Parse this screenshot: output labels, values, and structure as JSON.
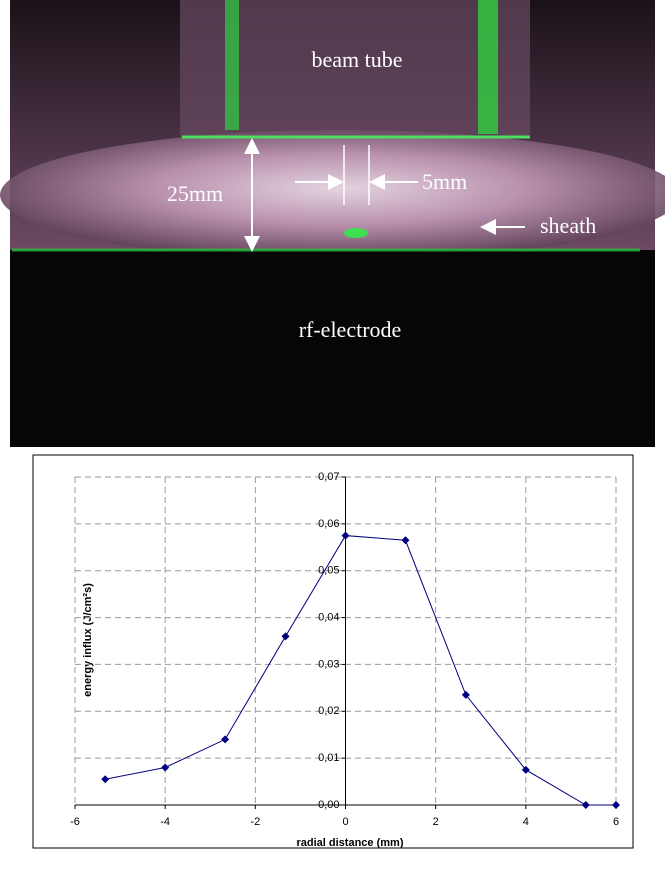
{
  "photo": {
    "beam_tube": "beam tube",
    "gap": "25mm",
    "spot": "5mm",
    "sheath": "sheath",
    "electrode": "rf-electrode"
  },
  "chart_data": {
    "type": "line",
    "x_label": "radial distance (mm)",
    "y_label": "energy influx (J/cm²s)",
    "x": [
      -5.33,
      -4,
      -2.67,
      -1.33,
      0,
      1.33,
      2.67,
      4,
      5.33,
      6
    ],
    "values": [
      0.0055,
      0.008,
      0.014,
      0.036,
      0.0575,
      0.0565,
      0.0235,
      0.0075,
      0.0,
      0.0
    ],
    "color": "#000080",
    "marker": "diamond",
    "xlim": [
      -6,
      6
    ],
    "ylim": [
      0,
      0.07
    ],
    "xticks": [
      -6,
      -4,
      -2,
      0,
      2,
      4,
      6
    ],
    "yticks": [
      {
        "value": 0,
        "label": "0,00"
      },
      {
        "value": 0.01,
        "label": "0,01"
      },
      {
        "value": 0.02,
        "label": "0,02"
      },
      {
        "value": 0.03,
        "label": "0,03"
      },
      {
        "value": 0.04,
        "label": "0,04"
      },
      {
        "value": 0.05,
        "label": "0,05"
      },
      {
        "value": 0.06,
        "label": "0,06"
      },
      {
        "value": 0.07,
        "label": "0,07"
      }
    ],
    "grid": true
  }
}
